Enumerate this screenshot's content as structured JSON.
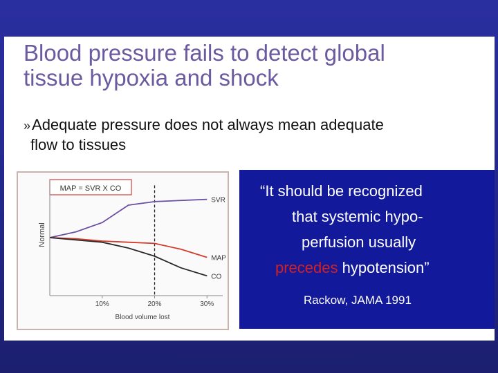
{
  "title": {
    "line1": "Blood pressure fails to detect global",
    "line2": "tissue hypoxia and shock"
  },
  "bullet": {
    "mark": "»",
    "line1": "Adequate pressure does not always mean adequate",
    "line2": "flow to tissues"
  },
  "chart_data": {
    "type": "line",
    "title": "MAP = SVR X CO",
    "xlabel": "Blood volume lost",
    "ylabel": "Normal",
    "x": [
      0,
      5,
      10,
      15,
      20,
      25,
      30
    ],
    "xticks": [
      "10%",
      "20%",
      "30%"
    ],
    "xtick_values": [
      10,
      20,
      30
    ],
    "xlim": [
      0,
      33
    ],
    "ylim": [
      0,
      100
    ],
    "threshold_x": 20,
    "series": [
      {
        "name": "SVR",
        "values": [
          50,
          55,
          63,
          78,
          81,
          82,
          83
        ],
        "color": "#6a4fa3"
      },
      {
        "name": "MAP",
        "values": [
          50,
          49,
          47,
          46,
          45,
          40,
          33
        ],
        "color": "#d43a2a"
      },
      {
        "name": "CO",
        "values": [
          50,
          48,
          46,
          41,
          34,
          24,
          17
        ],
        "color": "#2a2a2a"
      }
    ],
    "grid": false,
    "legend": "end-of-line labels"
  },
  "quote": {
    "line1": "“It should be recognized",
    "line2": "that systemic hypo-",
    "line3": "perfusion usually",
    "line4_highlight": "precedes",
    "line4_rest": " hypotension”",
    "citation": "Rackow, JAMA 1991",
    "highlight_color": "#d42020"
  }
}
